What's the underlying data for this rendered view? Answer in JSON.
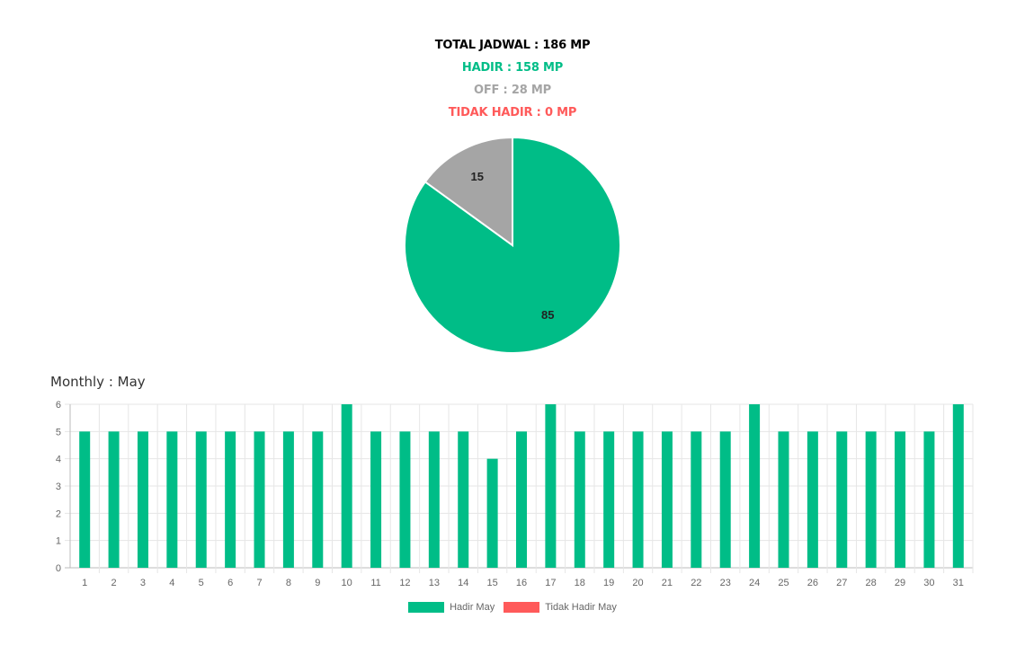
{
  "summary": {
    "total": "TOTAL JADWAL : 186 MP",
    "hadir": "HADIR : 158 MP",
    "off": "OFF : 28 MP",
    "tidak_hadir": "TIDAK HADIR : 0 MP"
  },
  "colors": {
    "total": "#000000",
    "hadir": "#00bd87",
    "off": "#a5a5a5",
    "tidak_hadir": "#ff5a5a",
    "grid": "#e6e6e6",
    "axis": "#999999"
  },
  "monthly": {
    "title": "Monthly : May"
  },
  "chart_data": [
    {
      "type": "pie",
      "labels": [
        "",
        ""
      ],
      "values": [
        85,
        15
      ],
      "colors": [
        "#00bd87",
        "#a5a5a5"
      ],
      "data_labels": [
        "85",
        "15"
      ]
    },
    {
      "type": "bar",
      "categories": [
        "1",
        "2",
        "3",
        "4",
        "5",
        "6",
        "7",
        "8",
        "9",
        "10",
        "11",
        "12",
        "13",
        "14",
        "15",
        "16",
        "17",
        "18",
        "19",
        "20",
        "21",
        "22",
        "23",
        "24",
        "25",
        "26",
        "27",
        "28",
        "29",
        "30",
        "31"
      ],
      "series": [
        {
          "name": "Hadir May",
          "color": "#00bd87",
          "values": [
            5,
            5,
            5,
            5,
            5,
            5,
            5,
            5,
            5,
            6,
            5,
            5,
            5,
            5,
            4,
            5,
            6,
            5,
            5,
            5,
            5,
            5,
            5,
            6,
            5,
            5,
            5,
            5,
            5,
            5,
            6
          ]
        },
        {
          "name": "Tidak Hadir May",
          "color": "#ff5a5a",
          "values": [
            0,
            0,
            0,
            0,
            0,
            0,
            0,
            0,
            0,
            0,
            0,
            0,
            0,
            0,
            0,
            0,
            0,
            0,
            0,
            0,
            0,
            0,
            0,
            0,
            0,
            0,
            0,
            0,
            0,
            0,
            0
          ]
        }
      ],
      "yticks": [
        "0",
        "1",
        "2",
        "3",
        "4",
        "5",
        "6"
      ],
      "ylim": [
        0,
        6
      ],
      "grid": true,
      "legend": "bottom"
    }
  ]
}
